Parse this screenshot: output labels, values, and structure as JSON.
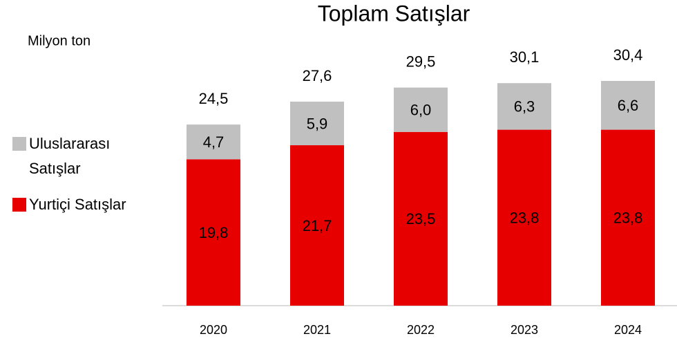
{
  "chart_data": {
    "type": "stacked_bar",
    "title": "Toplam Satışlar",
    "unit_label": "Milyon ton",
    "categories": [
      "2020",
      "2021",
      "2022",
      "2023",
      "2024"
    ],
    "series": [
      {
        "name": "Yurtiçi Satışlar",
        "color": "#e60000",
        "label_color": "#ffffff",
        "values": [
          19.8,
          21.7,
          23.5,
          23.8,
          23.8
        ],
        "value_labels": [
          "19,8",
          "21,7",
          "23,5",
          "23,8",
          "23,8"
        ]
      },
      {
        "name": "Uluslararası Satışlar",
        "color": "#c0c0c0",
        "label_color": "#000000",
        "values": [
          4.7,
          5.9,
          6.0,
          6.3,
          6.6
        ],
        "value_labels": [
          "4,7",
          "5,9",
          "6,0",
          "6,3",
          "6,6"
        ]
      }
    ],
    "totals": [
      24.5,
      27.6,
      29.5,
      30.1,
      30.4
    ],
    "total_labels": [
      "24,5",
      "27,6",
      "29,5",
      "30,1",
      "30,4"
    ]
  }
}
